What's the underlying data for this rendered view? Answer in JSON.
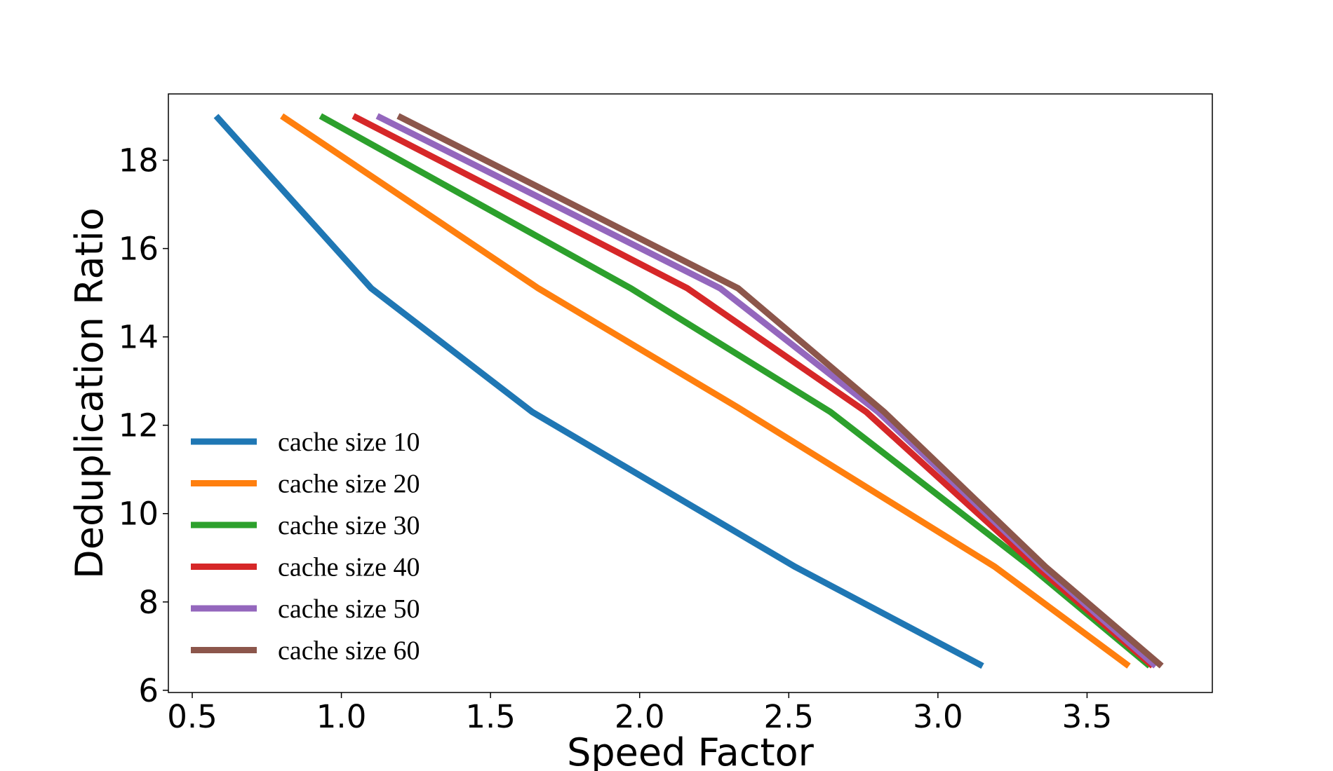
{
  "chart_data": {
    "type": "line",
    "title": "",
    "xlabel": "Speed Factor",
    "ylabel": "Deduplication Ratio",
    "xlim": [
      0.42,
      3.92
    ],
    "ylim": [
      5.95,
      19.5
    ],
    "xticks": [
      0.5,
      1.0,
      1.5,
      2.0,
      2.5,
      3.0,
      3.5
    ],
    "xtick_labels": [
      "0.5",
      "1.0",
      "1.5",
      "2.0",
      "2.5",
      "3.0",
      "3.5"
    ],
    "yticks": [
      6,
      8,
      10,
      12,
      14,
      16,
      18
    ],
    "ytick_labels": [
      "6",
      "8",
      "10",
      "12",
      "14",
      16,
      "18"
    ],
    "grid": false,
    "legend_position": "lower-left",
    "series": [
      {
        "name": "cache size 10",
        "color": "#1f77b4",
        "x": [
          0.58,
          1.1,
          1.64,
          2.52,
          3.15
        ],
        "y": [
          19.0,
          15.1,
          12.3,
          8.8,
          6.55
        ]
      },
      {
        "name": "cache size 20",
        "color": "#ff7f0e",
        "x": [
          0.8,
          1.66,
          2.33,
          3.19,
          3.64
        ],
        "y": [
          19.0,
          15.1,
          12.4,
          8.8,
          6.55
        ]
      },
      {
        "name": "cache size 30",
        "color": "#2ca02c",
        "x": [
          0.93,
          1.97,
          2.64,
          3.31,
          3.71
        ],
        "y": [
          19.0,
          15.1,
          12.3,
          8.8,
          6.55
        ]
      },
      {
        "name": "cache size 40",
        "color": "#d62728",
        "x": [
          1.04,
          2.16,
          2.76,
          3.33,
          3.72
        ],
        "y": [
          19.0,
          15.1,
          12.3,
          8.8,
          6.55
        ]
      },
      {
        "name": "cache size 50",
        "color": "#9467bd",
        "x": [
          1.12,
          2.27,
          2.8,
          3.35,
          3.73
        ],
        "y": [
          19.0,
          15.1,
          12.3,
          8.8,
          6.55
        ]
      },
      {
        "name": "cache size 60",
        "color": "#8c564b",
        "x": [
          1.19,
          2.33,
          2.82,
          3.36,
          3.75
        ],
        "y": [
          19.0,
          15.1,
          12.3,
          8.8,
          6.55
        ]
      }
    ]
  }
}
